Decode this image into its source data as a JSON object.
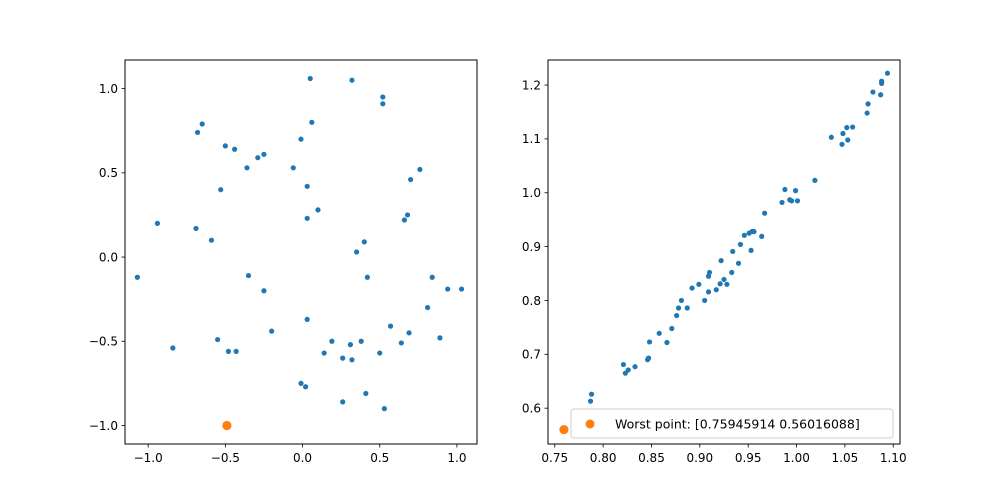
{
  "chart_data": [
    {
      "type": "scatter",
      "title": "",
      "xlabel": "",
      "ylabel": "",
      "xlim": [
        -1.15,
        1.13
      ],
      "ylim": [
        -1.11,
        1.17
      ],
      "xticks": [
        -1.0,
        -0.5,
        0.0,
        0.5,
        1.0
      ],
      "xtick_labels": [
        "−1.0",
        "−0.5",
        "0.0",
        "0.5",
        "1.0"
      ],
      "yticks": [
        -1.0,
        -0.5,
        0.0,
        0.5,
        1.0
      ],
      "ytick_labels": [
        "−1.0",
        "−0.5",
        "0.0",
        "0.5",
        "1.0"
      ],
      "grid": false,
      "series": [
        {
          "color": "#1f77b4",
          "points": [
            [
              0.05,
              1.06
            ],
            [
              0.32,
              1.05
            ],
            [
              0.52,
              0.95
            ],
            [
              0.52,
              0.91
            ],
            [
              0.06,
              0.8
            ],
            [
              -0.65,
              0.79
            ],
            [
              -0.68,
              0.74
            ],
            [
              -0.01,
              0.7
            ],
            [
              -0.5,
              0.66
            ],
            [
              -0.44,
              0.64
            ],
            [
              -0.25,
              0.61
            ],
            [
              -0.29,
              0.59
            ],
            [
              -0.36,
              0.53
            ],
            [
              -0.06,
              0.53
            ],
            [
              0.76,
              0.52
            ],
            [
              0.7,
              0.46
            ],
            [
              0.03,
              0.42
            ],
            [
              -0.53,
              0.4
            ],
            [
              0.1,
              0.28
            ],
            [
              0.68,
              0.25
            ],
            [
              0.66,
              0.22
            ],
            [
              0.03,
              0.23
            ],
            [
              -0.94,
              0.2
            ],
            [
              -0.69,
              0.17
            ],
            [
              -0.59,
              0.1
            ],
            [
              0.4,
              0.09
            ],
            [
              0.35,
              0.03
            ],
            [
              -1.07,
              -0.12
            ],
            [
              -0.35,
              -0.11
            ],
            [
              0.42,
              -0.12
            ],
            [
              0.84,
              -0.12
            ],
            [
              0.94,
              -0.19
            ],
            [
              1.03,
              -0.19
            ],
            [
              -0.25,
              -0.2
            ],
            [
              0.81,
              -0.3
            ],
            [
              0.03,
              -0.37
            ],
            [
              0.57,
              -0.41
            ],
            [
              -0.2,
              -0.44
            ],
            [
              0.69,
              -0.45
            ],
            [
              -0.84,
              -0.54
            ],
            [
              -0.55,
              -0.49
            ],
            [
              0.19,
              -0.5
            ],
            [
              0.38,
              -0.5
            ],
            [
              0.89,
              -0.48
            ],
            [
              0.31,
              -0.52
            ],
            [
              0.64,
              -0.51
            ],
            [
              -0.48,
              -0.56
            ],
            [
              -0.43,
              -0.56
            ],
            [
              0.14,
              -0.57
            ],
            [
              0.5,
              -0.57
            ],
            [
              0.26,
              -0.6
            ],
            [
              0.32,
              -0.61
            ],
            [
              -0.01,
              -0.75
            ],
            [
              0.02,
              -0.77
            ],
            [
              0.41,
              -0.81
            ],
            [
              0.26,
              -0.86
            ],
            [
              0.53,
              -0.9
            ]
          ]
        },
        {
          "color": "#ff7f0e",
          "points": [
            [
              -0.49,
              -1.0
            ]
          ]
        }
      ]
    },
    {
      "type": "scatter",
      "title": "",
      "xlabel": "",
      "ylabel": "",
      "xlim": [
        0.743,
        1.107
      ],
      "ylim": [
        0.5335,
        1.2465
      ],
      "xticks": [
        0.75,
        0.8,
        0.85,
        0.9,
        0.95,
        1.0,
        1.05,
        1.1
      ],
      "xtick_labels": [
        "0.75",
        "0.80",
        "0.85",
        "0.90",
        "0.95",
        "1.00",
        "1.05",
        "1.10"
      ],
      "yticks": [
        0.6,
        0.7,
        0.8,
        0.9,
        1.0,
        1.1,
        1.2
      ],
      "ytick_labels": [
        "0.6",
        "0.7",
        "0.8",
        "0.9",
        "1.0",
        "1.1",
        "1.2"
      ],
      "grid": false,
      "legend_placement": "lower-right",
      "series": [
        {
          "color": "#1f77b4",
          "points": [
            [
              0.787,
              0.613
            ],
            [
              0.788,
              0.626
            ],
            [
              0.821,
              0.681
            ],
            [
              0.823,
              0.665
            ],
            [
              0.826,
              0.671
            ],
            [
              0.833,
              0.677
            ],
            [
              0.846,
              0.69
            ],
            [
              0.847,
              0.693
            ],
            [
              0.848,
              0.723
            ],
            [
              0.858,
              0.739
            ],
            [
              0.866,
              0.722
            ],
            [
              0.871,
              0.748
            ],
            [
              0.876,
              0.772
            ],
            [
              0.878,
              0.786
            ],
            [
              0.881,
              0.8
            ],
            [
              0.887,
              0.786
            ],
            [
              0.892,
              0.823
            ],
            [
              0.899,
              0.83
            ],
            [
              0.905,
              0.8
            ],
            [
              0.909,
              0.816
            ],
            [
              0.909,
              0.845
            ],
            [
              0.91,
              0.852
            ],
            [
              0.917,
              0.82
            ],
            [
              0.921,
              0.831
            ],
            [
              0.922,
              0.874
            ],
            [
              0.925,
              0.839
            ],
            [
              0.928,
              0.83
            ],
            [
              0.933,
              0.852
            ],
            [
              0.934,
              0.891
            ],
            [
              0.94,
              0.869
            ],
            [
              0.942,
              0.904
            ],
            [
              0.946,
              0.921
            ],
            [
              0.951,
              0.925
            ],
            [
              0.954,
              0.928
            ],
            [
              0.956,
              0.928
            ],
            [
              0.953,
              0.893
            ],
            [
              0.964,
              0.919
            ],
            [
              0.967,
              0.962
            ],
            [
              0.985,
              0.982
            ],
            [
              0.988,
              1.006
            ],
            [
              0.993,
              0.987
            ],
            [
              0.995,
              0.985
            ],
            [
              0.999,
              1.004
            ],
            [
              1.001,
              0.985
            ],
            [
              1.019,
              1.023
            ],
            [
              1.036,
              1.103
            ],
            [
              1.047,
              1.09
            ],
            [
              1.048,
              1.11
            ],
            [
              1.053,
              1.098
            ],
            [
              1.052,
              1.121
            ],
            [
              1.058,
              1.122
            ],
            [
              1.073,
              1.148
            ],
            [
              1.074,
              1.165
            ],
            [
              1.079,
              1.187
            ],
            [
              1.087,
              1.182
            ],
            [
              1.088,
              1.203
            ],
            [
              1.088,
              1.207
            ],
            [
              1.094,
              1.222
            ]
          ]
        },
        {
          "name": "Worst point: [0.75945914 0.56016088]",
          "color": "#ff7f0e",
          "points": [
            [
              0.75945914,
              0.56016088
            ]
          ]
        }
      ]
    }
  ]
}
